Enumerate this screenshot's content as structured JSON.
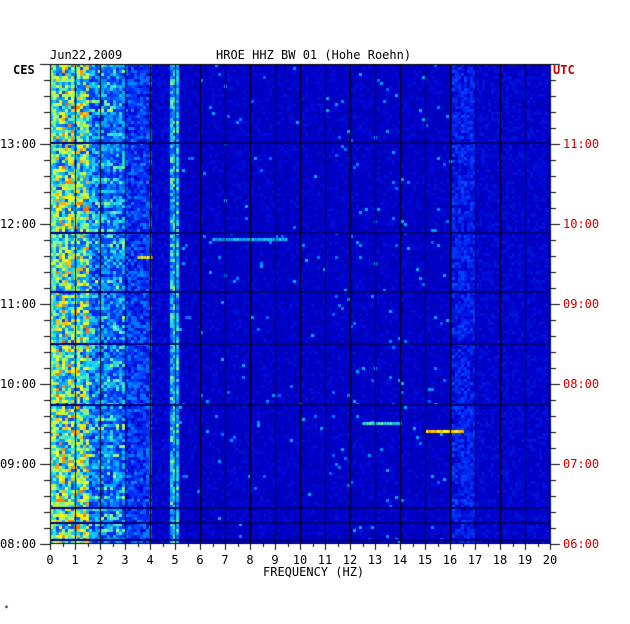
{
  "header": {
    "date": "Jun22,2009",
    "station": "HROE HHZ BW 01 (Hohe Roehn)"
  },
  "left_timezone": "CES",
  "right_timezone": "UTC",
  "left_ticks": [
    "13:00",
    "12:00",
    "11:00",
    "10:00",
    "09:00",
    "08:00"
  ],
  "right_ticks": [
    "11:00",
    "10:00",
    "09:00",
    "08:00",
    "07:00",
    "06:00"
  ],
  "footer_mark": "*",
  "colors": {
    "background_low": "#0000a0",
    "mid": "#00c0ff",
    "high": "#ffff00",
    "peak": "#ff0000",
    "grid": "#000000",
    "utc_text": "#cc0000"
  },
  "chart_data": {
    "type": "heatmap",
    "title": "HROE HHZ BW 01 (Hohe Roehn)",
    "date": "Jun22,2009",
    "xlabel": "FREQUENCY (HZ)",
    "x_ticks": [
      0,
      1,
      2,
      3,
      4,
      5,
      6,
      7,
      8,
      9,
      10,
      11,
      12,
      13,
      14,
      15,
      16,
      17,
      18,
      19,
      20
    ],
    "xlim": [
      0,
      20
    ],
    "y_left_label": "CES",
    "y_right_label": "UTC",
    "y_ticks_left": [
      "13:00",
      "12:00",
      "11:00",
      "10:00",
      "09:00",
      "08:00"
    ],
    "y_ticks_right": [
      "11:00",
      "10:00",
      "09:00",
      "08:00",
      "07:00",
      "06:00"
    ],
    "ylim_local_hours": [
      8.0,
      13.9
    ],
    "grid": true,
    "energy_bands_hz": [
      {
        "range": [
          0.2,
          3.0
        ],
        "level": "high"
      },
      {
        "range": [
          3.0,
          4.0
        ],
        "level": "medium"
      },
      {
        "range": [
          4.8,
          5.0
        ],
        "level": "medium-line"
      },
      {
        "range": [
          16.0,
          17.0
        ],
        "level": "low-medium"
      }
    ]
  }
}
